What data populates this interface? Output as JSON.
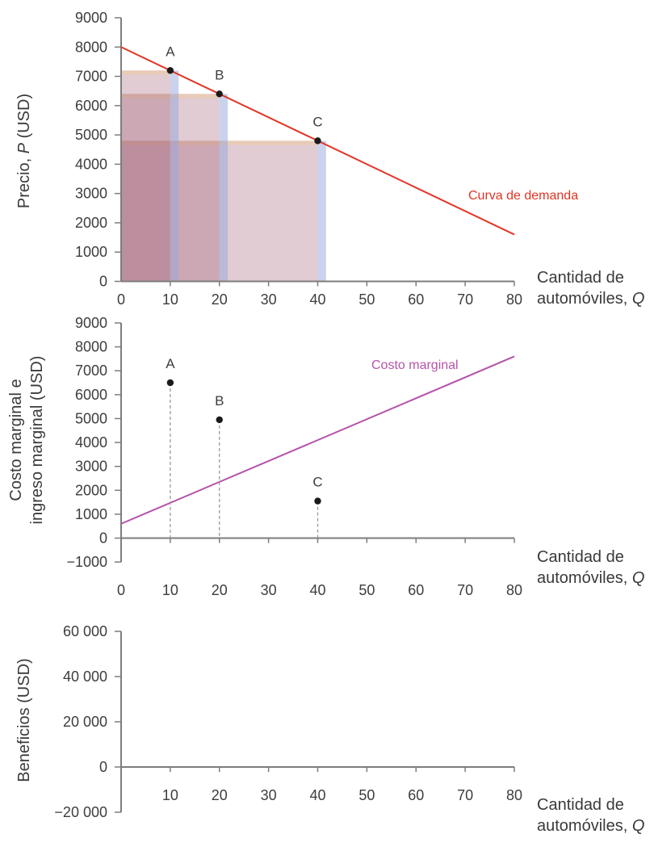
{
  "figure": {
    "background": "#ffffff",
    "axis_color": "#7d7d7d",
    "tick_text_color": "#3d3d3d",
    "title_text_color": "#3a3a3a",
    "marker_color": "#1a1a1a",
    "drop_line_color": "#9a9a9a"
  },
  "chart_data": [
    {
      "type": "line",
      "name": "demanda",
      "y_axis": {
        "label_parts": [
          {
            "t": "Precio, "
          },
          {
            "t": "P",
            "i": true
          },
          {
            "t": " (USD)"
          }
        ],
        "min": 0,
        "max": 9000,
        "tick_step": 1000,
        "tick_labels": [
          "0",
          "1000",
          "2000",
          "3000",
          "4000",
          "5000",
          "6000",
          "7000",
          "8000",
          "9000"
        ]
      },
      "x_axis": {
        "label_lines": [
          [
            {
              "t": "Cantidad de"
            }
          ],
          [
            {
              "t": "automóviles, "
            },
            {
              "t": "Q",
              "i": true
            }
          ]
        ],
        "min": 0,
        "max": 80,
        "tick_values": [
          0,
          10,
          20,
          30,
          40,
          50,
          60,
          70,
          80
        ],
        "tick_labels": [
          "0",
          "10",
          "20",
          "30",
          "40",
          "50",
          "60",
          "70",
          "80"
        ]
      },
      "series": [
        {
          "name": "Curva de demanda",
          "color": "#e23424",
          "points": [
            [
              0,
              8000
            ],
            [
              80,
              1600
            ]
          ]
        }
      ],
      "markers": [
        {
          "label": "A",
          "x": 10,
          "y": 7200
        },
        {
          "label": "B",
          "x": 20,
          "y": 6400
        },
        {
          "label": "C",
          "x": 40,
          "y": 4800
        }
      ],
      "revenue_rectangles": {
        "enabled": true,
        "extra_width_units": 1.7,
        "top_strip_value": 150,
        "fill": "rgba(155,85,110,0.30)",
        "top_strip_fill": "rgba(238,203,163,0.55)",
        "side_strip_fill": "rgba(150,165,220,0.5)"
      },
      "annotation": {
        "text": "Curva de demanda",
        "color": "#e23424"
      }
    },
    {
      "type": "line",
      "name": "costo-marginal",
      "y_axis": {
        "label_lines": [
          [
            {
              "t": "Costo marginal e"
            }
          ],
          [
            {
              "t": "ingreso marginal (USD)"
            }
          ]
        ],
        "min": -1000,
        "max": 9000,
        "tick_step": 1000,
        "tick_labels": [
          "−1000",
          "0",
          "1000",
          "2000",
          "3000",
          "4000",
          "5000",
          "6000",
          "7000",
          "8000",
          "9000"
        ]
      },
      "x_axis": {
        "label_lines": [
          [
            {
              "t": "Cantidad de"
            }
          ],
          [
            {
              "t": "automóviles, "
            },
            {
              "t": "Q",
              "i": true
            }
          ]
        ],
        "min": 0,
        "max": 80,
        "tick_values": [
          0,
          10,
          20,
          30,
          40,
          50,
          60,
          70,
          80
        ],
        "tick_labels": [
          "0",
          "10",
          "20",
          "30",
          "40",
          "50",
          "60",
          "70",
          "80"
        ]
      },
      "series": [
        {
          "name": "Costo marginal",
          "color": "#b653ab",
          "points": [
            [
              0,
              600
            ],
            [
              80,
              7600
            ]
          ]
        }
      ],
      "markers": [
        {
          "label": "A",
          "x": 10,
          "y": 6500,
          "drop_line": true
        },
        {
          "label": "B",
          "x": 20,
          "y": 4950,
          "drop_line": true
        },
        {
          "label": "C",
          "x": 40,
          "y": 1550,
          "drop_line": true
        }
      ],
      "annotation": {
        "text": "Costo marginal",
        "color": "#b653ab"
      }
    },
    {
      "type": "axes",
      "name": "beneficios",
      "y_axis": {
        "label_parts": [
          {
            "t": "Beneficios (USD)"
          }
        ],
        "min": -20000,
        "max": 60000,
        "tick_step": 20000,
        "tick_labels": [
          "−20 000",
          "0",
          "20 000",
          "40 000",
          "60 000"
        ]
      },
      "x_axis": {
        "label_lines": [
          [
            {
              "t": "Cantidad de"
            }
          ],
          [
            {
              "t": "automóviles, "
            },
            {
              "t": "Q",
              "i": true
            }
          ]
        ],
        "min": 0,
        "max": 80,
        "tick_values": [
          10,
          20,
          30,
          40,
          50,
          60,
          70,
          80
        ],
        "tick_labels": [
          "10",
          "20",
          "30",
          "40",
          "50",
          "60",
          "70",
          "80"
        ]
      },
      "series": [],
      "markers": []
    }
  ]
}
